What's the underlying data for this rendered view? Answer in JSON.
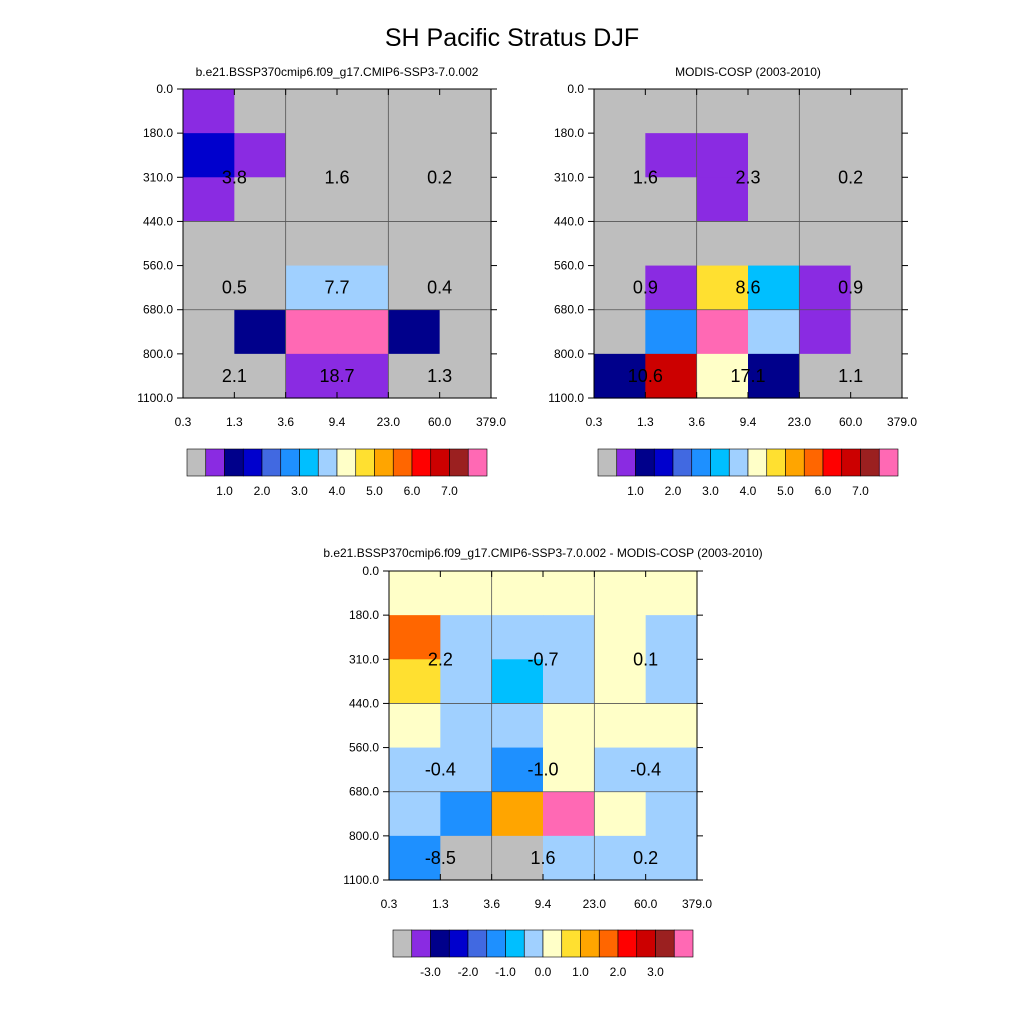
{
  "title": "SH Pacific Stratus DJF",
  "colors": {
    "absolute_palette": [
      "#bebebe",
      "#8a2be2",
      "#00008b",
      "#0000cd",
      "#4169e1",
      "#1e90ff",
      "#00bfff",
      "#a0d0ff",
      "#ffffc8",
      "#ffe030",
      "#ffa500",
      "#ff6600",
      "#ff0000",
      "#cc0000",
      "#9b2020",
      "#ff69b4"
    ],
    "difference_palette": [
      "#bebebe",
      "#8a2be2",
      "#00008b",
      "#0000cd",
      "#4169e1",
      "#1e90ff",
      "#00bfff",
      "#a0d0ff",
      "#ffffc8",
      "#ffe030",
      "#ffa500",
      "#ff6600",
      "#ff0000",
      "#cc0000",
      "#9b2020",
      "#ff69b4"
    ]
  },
  "chart_data": [
    {
      "type": "heatmap",
      "title": "b.e21.BSSP370cmip6.f09_g17.CMIP6-SSP3-7.0.002",
      "xlabel": "",
      "ylabel": "",
      "x_ticks": [
        "0.3",
        "1.3",
        "3.6",
        "9.4",
        "23.0",
        "60.0",
        "379.0"
      ],
      "y_ticks": [
        "0.0",
        "180.0",
        "310.0",
        "440.0",
        "560.0",
        "680.0",
        "800.0",
        "1100.0"
      ],
      "cells": [
        [
          "#8a2be2",
          "#bebebe",
          "#bebebe",
          "#bebebe",
          "#bebebe",
          "#bebebe"
        ],
        [
          "#0000cd",
          "#8a2be2",
          "#bebebe",
          "#bebebe",
          "#bebebe",
          "#bebebe"
        ],
        [
          "#8a2be2",
          "#bebebe",
          "#bebebe",
          "#bebebe",
          "#bebebe",
          "#bebebe"
        ],
        [
          "#bebebe",
          "#bebebe",
          "#bebebe",
          "#bebebe",
          "#bebebe",
          "#bebebe"
        ],
        [
          "#bebebe",
          "#bebebe",
          "#a0d0ff",
          "#a0d0ff",
          "#bebebe",
          "#bebebe"
        ],
        [
          "#bebebe",
          "#00008b",
          "#ff69b4",
          "#ff69b4",
          "#00008b",
          "#bebebe"
        ],
        [
          "#bebebe",
          "#bebebe",
          "#8a2be2",
          "#8a2be2",
          "#bebebe",
          "#bebebe"
        ]
      ],
      "annotations": [
        {
          "row": 1.5,
          "col": 1,
          "text": "3.8"
        },
        {
          "row": 1.5,
          "col": 3,
          "text": "1.6"
        },
        {
          "row": 1.5,
          "col": 5,
          "text": "0.2"
        },
        {
          "row": 4,
          "col": 1,
          "text": "0.5"
        },
        {
          "row": 4,
          "col": 3,
          "text": "7.7"
        },
        {
          "row": 4,
          "col": 5,
          "text": "0.4"
        },
        {
          "row": 6,
          "col": 1,
          "text": "2.1"
        },
        {
          "row": 6,
          "col": 3,
          "text": "18.7"
        },
        {
          "row": 6,
          "col": 5,
          "text": "1.3"
        }
      ],
      "colorbar": {
        "palette": "absolute",
        "labels": [
          "1.0",
          "2.0",
          "3.0",
          "4.0",
          "5.0",
          "6.0",
          "7.0"
        ],
        "label_start_index": 2
      }
    },
    {
      "type": "heatmap",
      "title": "MODIS-COSP (2003-2010)",
      "xlabel": "",
      "ylabel": "",
      "x_ticks": [
        "0.3",
        "1.3",
        "3.6",
        "9.4",
        "23.0",
        "60.0",
        "379.0"
      ],
      "y_ticks": [
        "0.0",
        "180.0",
        "310.0",
        "440.0",
        "560.0",
        "680.0",
        "800.0",
        "1100.0"
      ],
      "cells": [
        [
          "#bebebe",
          "#bebebe",
          "#bebebe",
          "#bebebe",
          "#bebebe",
          "#bebebe"
        ],
        [
          "#bebebe",
          "#8a2be2",
          "#8a2be2",
          "#bebebe",
          "#bebebe",
          "#bebebe"
        ],
        [
          "#bebebe",
          "#bebebe",
          "#8a2be2",
          "#bebebe",
          "#bebebe",
          "#bebebe"
        ],
        [
          "#bebebe",
          "#bebebe",
          "#bebebe",
          "#bebebe",
          "#bebebe",
          "#bebebe"
        ],
        [
          "#bebebe",
          "#8a2be2",
          "#ffe030",
          "#00bfff",
          "#8a2be2",
          "#bebebe"
        ],
        [
          "#bebebe",
          "#1e90ff",
          "#ff69b4",
          "#a0d0ff",
          "#8a2be2",
          "#bebebe"
        ],
        [
          "#00008b",
          "#cc0000",
          "#ffffc8",
          "#00008b",
          "#bebebe",
          "#bebebe"
        ]
      ],
      "annotations": [
        {
          "row": 1.5,
          "col": 1,
          "text": "1.6"
        },
        {
          "row": 1.5,
          "col": 3,
          "text": "2.3"
        },
        {
          "row": 1.5,
          "col": 5,
          "text": "0.2"
        },
        {
          "row": 4,
          "col": 1,
          "text": "0.9"
        },
        {
          "row": 4,
          "col": 3,
          "text": "8.6"
        },
        {
          "row": 4,
          "col": 5,
          "text": "0.9"
        },
        {
          "row": 6,
          "col": 1,
          "text": "10.6"
        },
        {
          "row": 6,
          "col": 3,
          "text": "17.1"
        },
        {
          "row": 6,
          "col": 5,
          "text": "1.1"
        }
      ],
      "colorbar": {
        "palette": "absolute",
        "labels": [
          "1.0",
          "2.0",
          "3.0",
          "4.0",
          "5.0",
          "6.0",
          "7.0"
        ],
        "label_start_index": 2
      }
    },
    {
      "type": "heatmap",
      "title": "b.e21.BSSP370cmip6.f09_g17.CMIP6-SSP3-7.0.002 - MODIS-COSP (2003-2010)",
      "xlabel": "",
      "ylabel": "",
      "x_ticks": [
        "0.3",
        "1.3",
        "3.6",
        "9.4",
        "23.0",
        "60.0",
        "379.0"
      ],
      "y_ticks": [
        "0.0",
        "180.0",
        "310.0",
        "440.0",
        "560.0",
        "680.0",
        "800.0",
        "1100.0"
      ],
      "cells": [
        [
          "#ffffc8",
          "#ffffc8",
          "#ffffc8",
          "#ffffc8",
          "#ffffc8",
          "#ffffc8"
        ],
        [
          "#ff6600",
          "#a0d0ff",
          "#a0d0ff",
          "#a0d0ff",
          "#ffffc8",
          "#a0d0ff"
        ],
        [
          "#ffe030",
          "#a0d0ff",
          "#00bfff",
          "#a0d0ff",
          "#ffffc8",
          "#a0d0ff"
        ],
        [
          "#ffffc8",
          "#a0d0ff",
          "#a0d0ff",
          "#ffffc8",
          "#ffffc8",
          "#ffffc8"
        ],
        [
          "#a0d0ff",
          "#a0d0ff",
          "#1e90ff",
          "#ffffc8",
          "#a0d0ff",
          "#a0d0ff"
        ],
        [
          "#a0d0ff",
          "#1e90ff",
          "#ffa500",
          "#ff69b4",
          "#ffffc8",
          "#a0d0ff"
        ],
        [
          "#1e90ff",
          "#bebebe",
          "#bebebe",
          "#a0d0ff",
          "#a0d0ff",
          "#a0d0ff"
        ]
      ],
      "annotations": [
        {
          "row": 1.5,
          "col": 1,
          "text": "2.2"
        },
        {
          "row": 1.5,
          "col": 3,
          "text": "-0.7"
        },
        {
          "row": 1.5,
          "col": 5,
          "text": "0.1"
        },
        {
          "row": 4,
          "col": 1,
          "text": "-0.4"
        },
        {
          "row": 4,
          "col": 3,
          "text": "-1.0"
        },
        {
          "row": 4,
          "col": 5,
          "text": "-0.4"
        },
        {
          "row": 6,
          "col": 1,
          "text": "-8.5"
        },
        {
          "row": 6,
          "col": 3,
          "text": "1.6"
        },
        {
          "row": 6,
          "col": 5,
          "text": "0.2"
        }
      ],
      "colorbar": {
        "palette": "difference",
        "labels": [
          "-3.0",
          "-2.0",
          "-1.0",
          "0.0",
          "1.0",
          "2.0",
          "3.0"
        ],
        "label_start_index": 2
      }
    }
  ]
}
